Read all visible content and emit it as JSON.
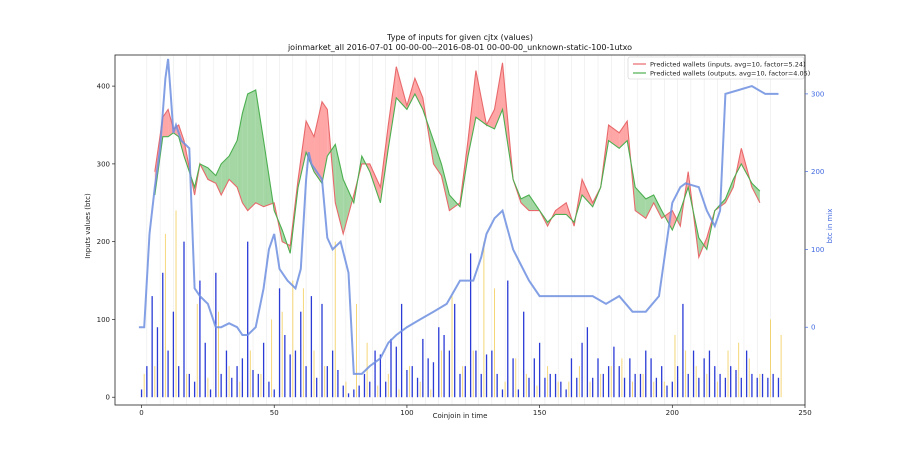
{
  "chart_data": {
    "type": "line",
    "title": "Type of inputs for given cjtx (values)",
    "subtitle": "joinmarket_all 2016-07-01 00-00-00--2016-08-01 00-00-00_unknown-static-100-1utxo",
    "xlabel": "Coinjoin in time",
    "ylabel": "Inputs values (btc)",
    "y2label": "btc in mix",
    "xlim": [
      -10,
      250
    ],
    "ylim": [
      -10,
      440
    ],
    "y2lim": [
      -100,
      350
    ],
    "xticks": [
      "0",
      "50",
      "100",
      "150",
      "200",
      "250"
    ],
    "yticks": [
      "0",
      "100",
      "200",
      "300",
      "400"
    ],
    "y2ticks": [
      "0",
      "100",
      "200",
      "300"
    ],
    "legend_position": "top-right",
    "colors": {
      "inputs": "#e8696b",
      "outputs": "#4caf50",
      "fill_red": "#ff8a8a",
      "fill_green": "#86c986",
      "mix": "#6f8fe0",
      "bars_blue": "#2a3bd6",
      "bars_yellow": "#f2c94c"
    },
    "series": [
      {
        "name": "Predicted wallets (inputs, avg=10, factor=5.24)",
        "x": [
          0,
          5,
          8,
          10,
          12,
          14,
          16,
          20,
          22,
          25,
          28,
          30,
          33,
          36,
          38,
          40,
          43,
          46,
          50,
          53,
          56,
          59,
          62,
          65,
          68,
          70,
          73,
          76,
          80,
          83,
          86,
          90,
          93,
          96,
          100,
          103,
          106,
          110,
          113,
          116,
          120,
          123,
          126,
          130,
          133,
          136,
          140,
          143,
          146,
          150,
          153,
          156,
          160,
          163,
          166,
          170,
          173,
          176,
          180,
          183,
          186,
          190,
          193,
          196,
          200,
          203,
          206,
          210,
          213,
          216,
          220,
          223,
          226,
          230,
          233,
          236,
          240
        ],
        "values": [
          null,
          290,
          360,
          370,
          345,
          350,
          330,
          260,
          300,
          280,
          275,
          260,
          280,
          270,
          250,
          240,
          250,
          245,
          250,
          200,
          195,
          280,
          355,
          335,
          380,
          370,
          250,
          210,
          260,
          300,
          300,
          270,
          350,
          425,
          375,
          410,
          385,
          300,
          285,
          240,
          250,
          330,
          420,
          350,
          370,
          430,
          280,
          250,
          240,
          240,
          220,
          240,
          250,
          220,
          280,
          250,
          270,
          350,
          340,
          355,
          240,
          230,
          250,
          230,
          240,
          220,
          290,
          180,
          205,
          240,
          250,
          270,
          320,
          270,
          250,
          null,
          null
        ]
      },
      {
        "name": "Predicted wallets (outputs, avg=10, factor=4.05)",
        "x": [
          0,
          5,
          8,
          10,
          12,
          14,
          16,
          20,
          22,
          25,
          28,
          30,
          33,
          36,
          38,
          40,
          43,
          46,
          50,
          53,
          56,
          59,
          62,
          65,
          68,
          70,
          73,
          76,
          80,
          83,
          86,
          90,
          93,
          96,
          100,
          103,
          106,
          110,
          113,
          116,
          120,
          123,
          126,
          130,
          133,
          136,
          140,
          143,
          146,
          150,
          153,
          156,
          160,
          163,
          166,
          170,
          173,
          176,
          180,
          183,
          186,
          190,
          193,
          196,
          200,
          203,
          206,
          210,
          213,
          216,
          220,
          223,
          226,
          230,
          233,
          236,
          240
        ],
        "values": [
          null,
          260,
          335,
          335,
          340,
          335,
          310,
          270,
          300,
          295,
          285,
          300,
          310,
          330,
          365,
          390,
          395,
          330,
          240,
          215,
          185,
          270,
          315,
          290,
          275,
          310,
          325,
          280,
          250,
          310,
          290,
          250,
          320,
          385,
          370,
          390,
          370,
          330,
          300,
          260,
          245,
          310,
          360,
          350,
          345,
          370,
          280,
          255,
          260,
          240,
          225,
          235,
          235,
          225,
          260,
          245,
          270,
          330,
          320,
          330,
          270,
          255,
          260,
          240,
          215,
          240,
          270,
          205,
          190,
          240,
          255,
          280,
          300,
          275,
          265,
          null,
          null
        ]
      },
      {
        "name": "btc in mix",
        "axis": "right",
        "x": [
          -1,
          1,
          3,
          5,
          7,
          9,
          10,
          11,
          12,
          13,
          15,
          18,
          20,
          22,
          25,
          28,
          30,
          33,
          36,
          38,
          40,
          43,
          46,
          48,
          50,
          52,
          55,
          58,
          60,
          62,
          63,
          64,
          66,
          68,
          70,
          72,
          75,
          78,
          80,
          83,
          86,
          90,
          93,
          96,
          100,
          105,
          110,
          115,
          120,
          125,
          128,
          130,
          133,
          136,
          140,
          143,
          146,
          150,
          155,
          160,
          165,
          170,
          175,
          180,
          185,
          190,
          195,
          200,
          203,
          205,
          210,
          213,
          216,
          218,
          220,
          225,
          230,
          235,
          240
        ],
        "values": [
          0,
          0,
          120,
          180,
          230,
          320,
          345,
          300,
          250,
          260,
          240,
          230,
          50,
          40,
          30,
          0,
          0,
          5,
          0,
          -10,
          -10,
          0,
          50,
          100,
          120,
          75,
          60,
          50,
          75,
          190,
          225,
          210,
          200,
          190,
          115,
          100,
          110,
          70,
          -60,
          -60,
          -50,
          -40,
          -20,
          -10,
          0,
          10,
          20,
          30,
          60,
          60,
          90,
          120,
          140,
          150,
          100,
          80,
          60,
          40,
          40,
          40,
          40,
          40,
          30,
          40,
          20,
          20,
          40,
          160,
          180,
          185,
          180,
          150,
          130,
          150,
          300,
          305,
          310,
          300,
          300
        ]
      }
    ],
    "bars": {
      "blue_x": [
        0,
        2,
        4,
        6,
        8,
        10,
        12,
        14,
        16,
        18,
        20,
        22,
        24,
        26,
        28,
        30,
        32,
        34,
        36,
        38,
        40,
        42,
        44,
        46,
        48,
        50,
        52,
        54,
        56,
        58,
        60,
        62,
        64,
        66,
        68,
        70,
        72,
        74,
        76,
        78,
        80,
        82,
        84,
        86,
        88,
        90,
        92,
        94,
        96,
        98,
        100,
        102,
        104,
        106,
        108,
        110,
        112,
        114,
        116,
        118,
        120,
        122,
        124,
        126,
        128,
        130,
        132,
        134,
        136,
        138,
        140,
        142,
        144,
        146,
        148,
        150,
        152,
        154,
        156,
        158,
        160,
        162,
        164,
        166,
        168,
        170,
        172,
        174,
        176,
        178,
        180,
        182,
        184,
        186,
        188,
        190,
        192,
        194,
        196,
        198,
        200,
        202,
        204,
        206,
        208,
        210,
        212,
        214,
        216,
        218,
        220,
        222,
        224,
        226,
        228,
        230,
        232,
        234,
        236,
        238,
        240
      ],
      "blue_values": [
        10,
        40,
        130,
        90,
        160,
        60,
        110,
        40,
        200,
        30,
        20,
        150,
        70,
        10,
        160,
        30,
        60,
        25,
        40,
        50,
        200,
        35,
        30,
        70,
        20,
        10,
        140,
        80,
        55,
        60,
        110,
        40,
        130,
        25,
        120,
        40,
        60,
        35,
        15,
        5,
        10,
        15,
        30,
        20,
        60,
        55,
        20,
        75,
        65,
        120,
        35,
        40,
        25,
        75,
        50,
        45,
        90,
        80,
        60,
        120,
        30,
        40,
        185,
        60,
        30,
        55,
        60,
        30,
        10,
        150,
        50,
        10,
        110,
        25,
        50,
        70,
        25,
        30,
        30,
        20,
        10,
        50,
        25,
        70,
        90,
        25,
        50,
        30,
        40,
        65,
        40,
        25,
        50,
        30,
        30,
        60,
        50,
        25,
        40,
        15,
        20,
        40,
        120,
        30,
        60,
        25,
        50,
        60,
        40,
        30,
        25,
        40,
        35,
        25,
        60,
        30,
        25,
        30,
        25,
        30,
        25
      ],
      "yellow_x": [
        1,
        5,
        9,
        13,
        17,
        21,
        25,
        29,
        33,
        37,
        41,
        45,
        49,
        53,
        57,
        61,
        65,
        69,
        73,
        77,
        81,
        85,
        89,
        93,
        97,
        101,
        105,
        109,
        113,
        117,
        121,
        125,
        129,
        133,
        137,
        141,
        145,
        149,
        153,
        157,
        161,
        165,
        169,
        173,
        177,
        181,
        185,
        189,
        193,
        197,
        201,
        205,
        209,
        213,
        217,
        221,
        225,
        229,
        233,
        237,
        241
      ],
      "yellow_values": [
        30,
        40,
        210,
        240,
        30,
        120,
        25,
        110,
        40,
        20,
        60,
        30,
        100,
        110,
        150,
        140,
        60,
        40,
        200,
        20,
        120,
        70,
        15,
        30,
        10,
        40,
        20,
        10,
        60,
        130,
        40,
        60,
        200,
        140,
        20,
        50,
        30,
        15,
        40,
        20,
        20,
        40,
        20,
        30,
        40,
        50,
        20,
        30,
        20,
        20,
        80,
        60,
        40,
        30,
        20,
        60,
        70,
        50,
        30,
        100,
        80
      ]
    }
  },
  "legend": [
    {
      "label": "Predicted wallets (inputs, avg=10, factor=5.24)",
      "color": "#e8696b"
    },
    {
      "label": "Predicted wallets (outputs, avg=10, factor=4.05)",
      "color": "#4caf50"
    }
  ]
}
